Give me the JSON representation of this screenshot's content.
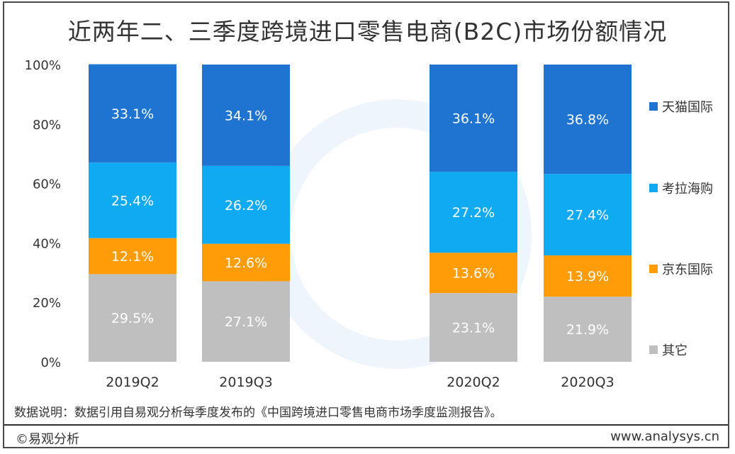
{
  "title": "近两年二、三季度跨境进口零售电商(B2C)市场份额情况",
  "note": "数据说明：数据引用自易观分析每季度发布的《中国跨境进口零售电商市场季度监测报告》。",
  "copyright": "©易观分析",
  "website": "www.analysys.cn",
  "watermark_logo": "analysys 易观分析",
  "colors": {
    "tmall": "#1f74d1",
    "kaola": "#10aaf2",
    "jd": "#ff9c08",
    "other": "#bfbfbf"
  },
  "chart_data": {
    "type": "bar",
    "stacked": true,
    "categories": [
      "2019Q2",
      "2019Q3",
      "2020Q2",
      "2020Q3"
    ],
    "series": [
      {
        "name": "其它",
        "values": [
          29.5,
          27.1,
          23.1,
          21.9
        ],
        "labels": [
          "29.5%",
          "27.1%",
          "23.1%",
          "21.9%"
        ],
        "color": "#bfbfbf"
      },
      {
        "name": "京东国际",
        "values": [
          12.1,
          12.6,
          13.6,
          13.9
        ],
        "labels": [
          "12.1%",
          "12.6%",
          "13.6%",
          "13.9%"
        ],
        "color": "#ff9c08"
      },
      {
        "name": "考拉海购",
        "values": [
          25.4,
          26.2,
          27.2,
          27.4
        ],
        "labels": [
          "25.4%",
          "26.2%",
          "27.2%",
          "27.4%"
        ],
        "color": "#10aaf2"
      },
      {
        "name": "天猫国际",
        "values": [
          33.1,
          34.1,
          36.1,
          36.8
        ],
        "labels": [
          "33.1%",
          "34.1%",
          "36.1%",
          "36.8%"
        ],
        "color": "#1f74d1"
      }
    ],
    "legend_order": [
      "天猫国际",
      "考拉海购",
      "京东国际",
      "其它"
    ],
    "legend_position": "right",
    "yticks": [
      "0%",
      "20%",
      "40%",
      "60%",
      "80%",
      "100%"
    ],
    "ylim": [
      0,
      100
    ],
    "grid": false
  }
}
